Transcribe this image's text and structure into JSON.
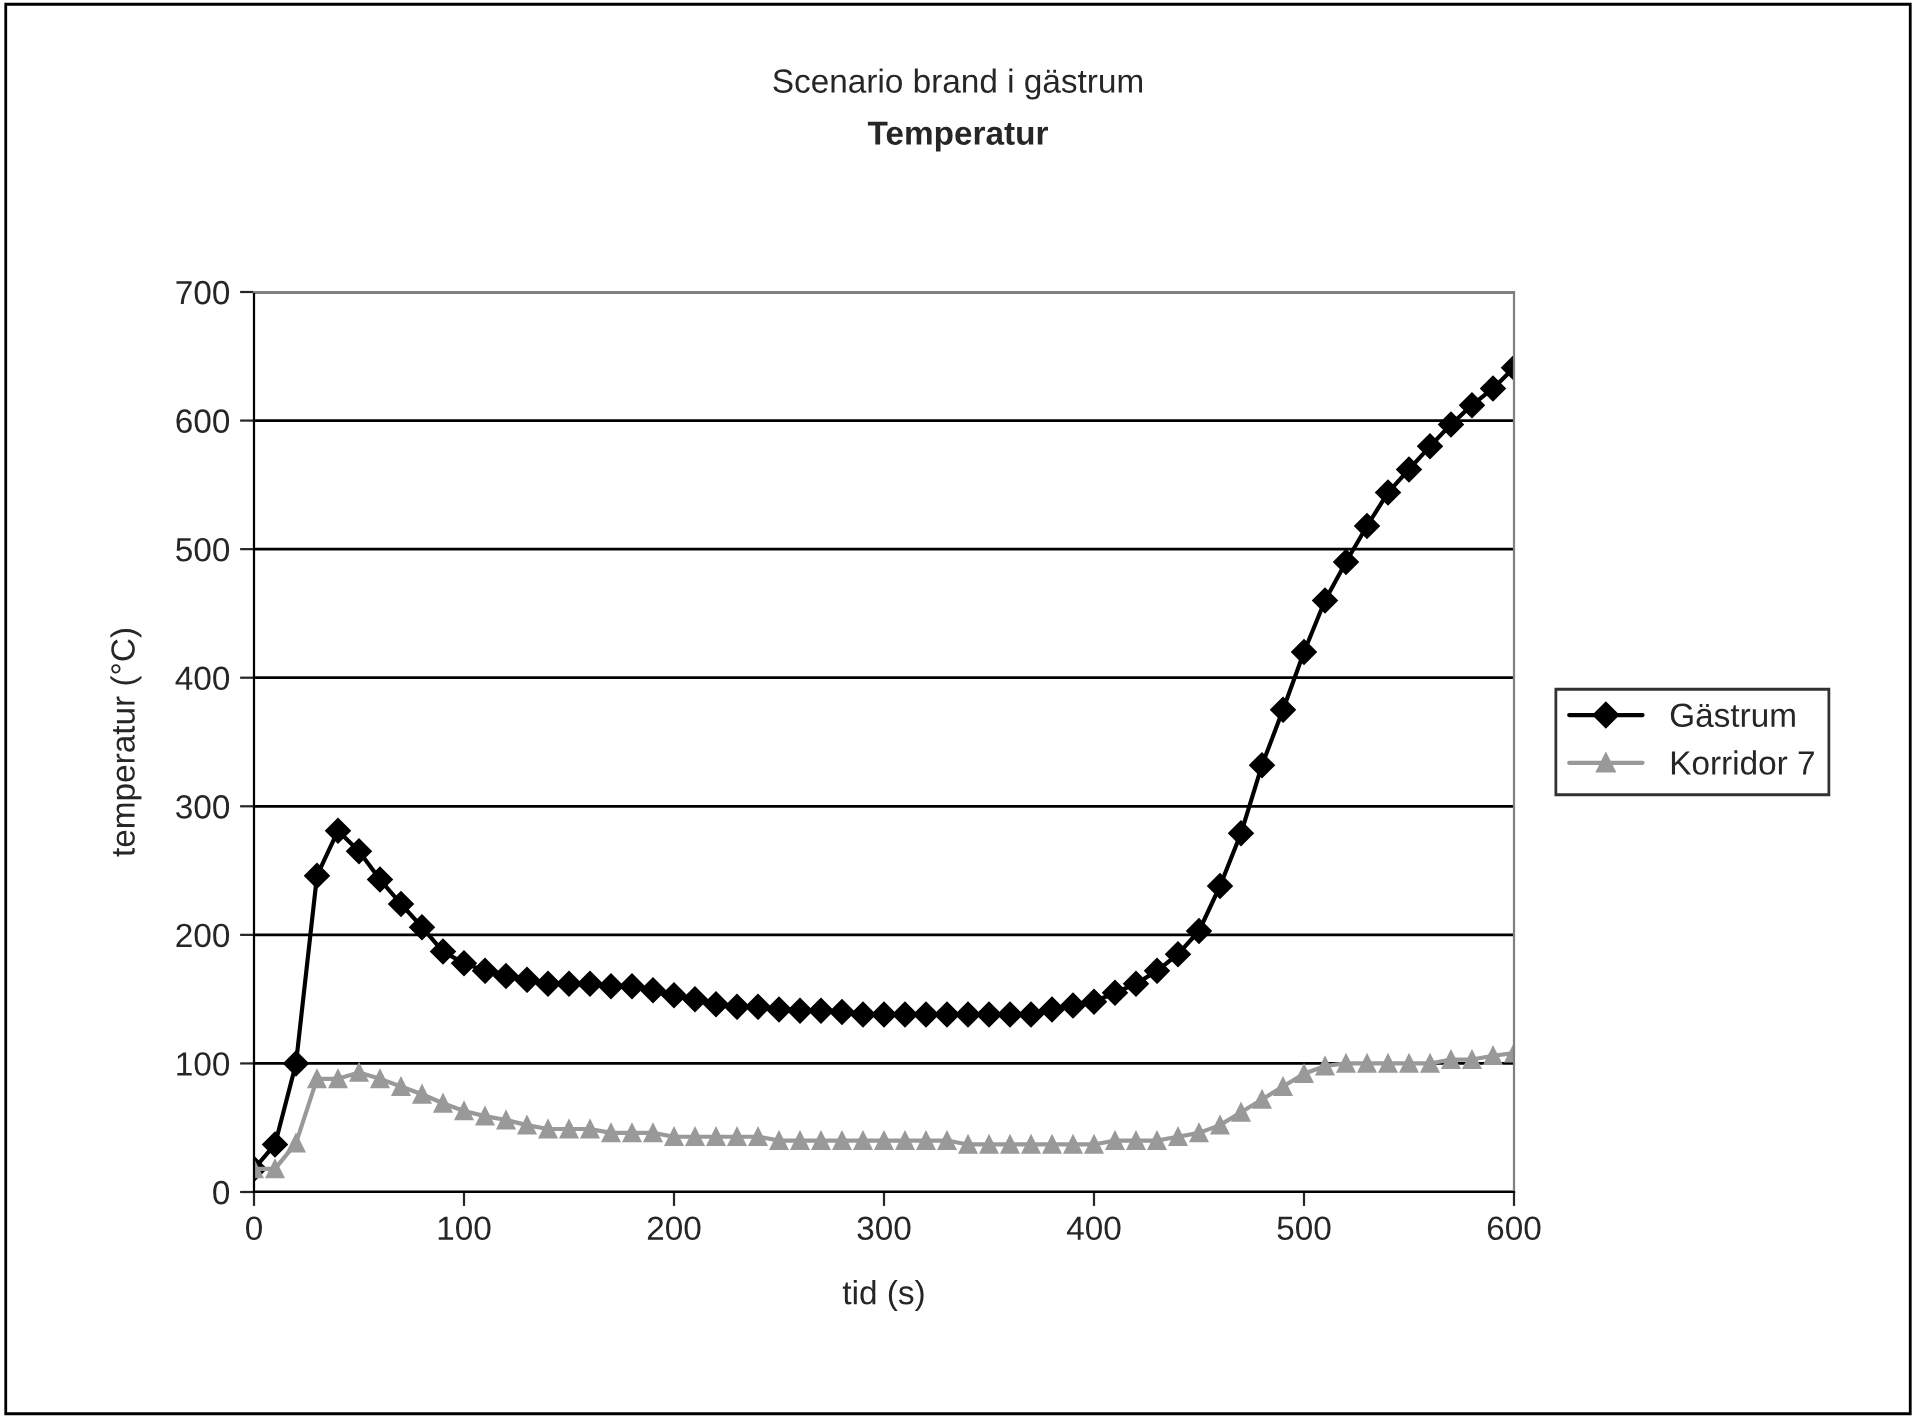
{
  "chart_data": {
    "type": "line",
    "title": "Scenario brand i gästrum",
    "subtitle": "Temperatur",
    "xlabel": "tid (s)",
    "ylabel": "temperatur (°C)",
    "x": [
      0,
      10,
      20,
      30,
      40,
      50,
      60,
      70,
      80,
      90,
      100,
      110,
      120,
      130,
      140,
      150,
      160,
      170,
      180,
      190,
      200,
      210,
      220,
      230,
      240,
      250,
      260,
      270,
      280,
      290,
      300,
      310,
      320,
      330,
      340,
      350,
      360,
      370,
      380,
      390,
      400,
      410,
      420,
      430,
      440,
      450,
      460,
      470,
      480,
      490,
      500,
      510,
      520,
      530,
      540,
      550,
      560,
      570,
      580,
      590,
      600
    ],
    "series": [
      {
        "name": "Gästrum",
        "color": "#000000",
        "marker": "diamond",
        "values": [
          18,
          37,
          100,
          246,
          281,
          265,
          243,
          224,
          206,
          187,
          178,
          172,
          168,
          165,
          162,
          162,
          162,
          160,
          160,
          157,
          153,
          150,
          146,
          144,
          144,
          142,
          141,
          141,
          140,
          138,
          138,
          138,
          138,
          138,
          138,
          138,
          138,
          138,
          142,
          145,
          148,
          155,
          162,
          172,
          185,
          203,
          238,
          279,
          332,
          375,
          420,
          460,
          490,
          518,
          544,
          562,
          580,
          597,
          612,
          625,
          641
        ]
      },
      {
        "name": "Korridor 7",
        "color": "#999999",
        "marker": "triangle",
        "values": [
          18,
          18,
          38,
          88,
          88,
          93,
          88,
          82,
          76,
          69,
          63,
          59,
          56,
          52,
          49,
          49,
          49,
          46,
          46,
          46,
          43,
          43,
          43,
          43,
          43,
          40,
          40,
          40,
          40,
          40,
          40,
          40,
          40,
          40,
          37,
          37,
          37,
          37,
          37,
          37,
          37,
          40,
          40,
          40,
          43,
          46,
          52,
          62,
          72,
          82,
          92,
          98,
          100,
          100,
          100,
          100,
          100,
          103,
          103,
          106,
          108
        ]
      }
    ],
    "xlim": [
      0,
      600
    ],
    "xticks": [
      0,
      100,
      200,
      300,
      400,
      500,
      600
    ],
    "ylim": [
      0,
      700
    ],
    "yticks": [
      0,
      100,
      200,
      300,
      400,
      500,
      600,
      700
    ],
    "grid": "y",
    "legend": "right",
    "line_style": "solid"
  }
}
